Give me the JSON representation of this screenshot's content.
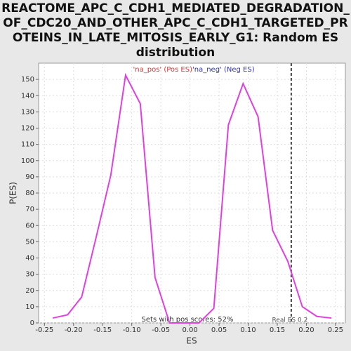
{
  "chart_data": {
    "type": "line",
    "title": [
      "REACTOME_APC_C_CDH1_MEDIATED_DEGRADATION_",
      "OF_CDC20_AND_OTHER_APC_C_CDH1_TARGETED_PR",
      "OTEINS_IN_LATE_MITOSIS_EARLY_G1: Random ES",
      "distribution"
    ],
    "x_label": "ES",
    "y_label": "P(ES)",
    "legend": [
      {
        "name": "'na_pos' (Pos ES)",
        "color": "#e03030"
      },
      {
        "name": "'na_neg' (Neg ES)",
        "color": "#3030c0"
      }
    ],
    "annotation": "Sets with pos scores: 52%",
    "real_es": 0.174,
    "real_es_label": "Real ES 0.2",
    "x": [
      -0.2356,
      -0.2103,
      -0.186,
      -0.161,
      -0.136,
      -0.1106,
      -0.0853,
      -0.06,
      -0.035,
      -0.0096,
      0.0156,
      0.041,
      0.066,
      0.0913,
      0.117,
      0.142,
      0.168,
      0.193,
      0.218,
      0.243
    ],
    "series": [
      {
        "name": "ES distribution",
        "color": "#e040e0",
        "values": [
          3,
          5,
          16,
          53,
          91,
          152.6,
          135,
          28,
          0,
          0,
          0,
          9,
          122,
          147.4,
          127,
          57,
          38,
          10,
          4,
          3
        ]
      }
    ],
    "xlim": [
      -0.26,
      0.267
    ],
    "ylim": [
      0,
      160
    ],
    "xticks": [
      -0.25,
      {
        "value": -0.2,
        "label": "-0.20"
      },
      -0.15,
      {
        "value": -0.1,
        "label": "-0.10"
      },
      -0.05,
      {
        "value": 0,
        "label": "0.00"
      },
      0.05,
      {
        "value": 0.1,
        "label": "0.10"
      },
      0.15,
      {
        "value": 0.2,
        "label": "0.20"
      },
      0.25
    ],
    "yticks": [
      0,
      10,
      20,
      30,
      40,
      50,
      60,
      70,
      80,
      90,
      100,
      110,
      120,
      130,
      140,
      150
    ],
    "grid": true
  }
}
